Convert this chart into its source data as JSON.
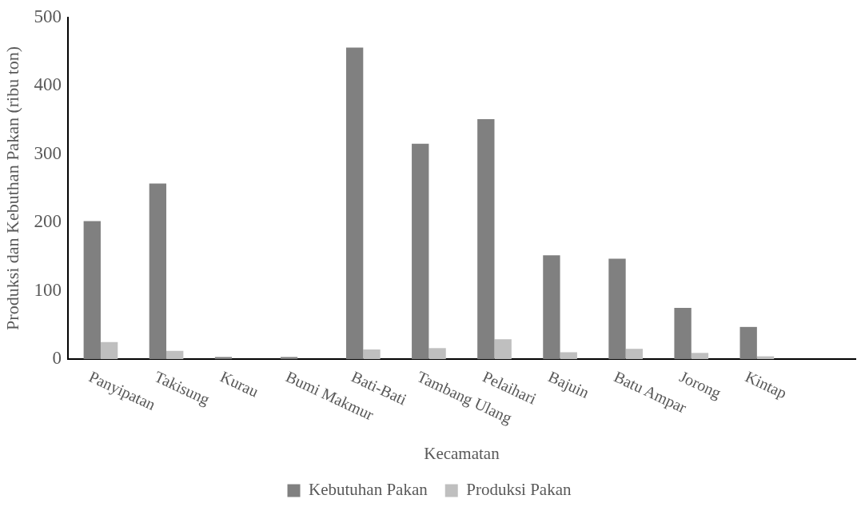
{
  "chart_data": {
    "type": "bar",
    "xlabel": "Kecamatan",
    "ylabel": "Produksi dan Kebuthan Pakan (ribu ton)",
    "categories": [
      "Panyipatan",
      "Takisung",
      "Kurau",
      "Bumi Makmur",
      "Bati-Bati",
      "Tambang Ulang",
      "Pelaihari",
      "Bajuin",
      "Batu Ampar",
      "Jorong",
      "Kintap",
      null
    ],
    "series": [
      {
        "name": "Kebutuhan Pakan",
        "color": "#808080",
        "values": [
          202,
          257,
          3,
          3,
          456,
          315,
          351,
          152,
          147,
          75,
          47,
          null
        ]
      },
      {
        "name": "Produksi Pakan",
        "color": "#bfbfbf",
        "values": [
          25,
          12,
          null,
          null,
          14,
          16,
          29,
          10,
          15,
          9,
          4,
          null
        ]
      }
    ],
    "ylim": [
      0,
      500
    ],
    "yticks": [
      0,
      100,
      200,
      300,
      400,
      500
    ],
    "grid": false,
    "legend": "bottom"
  }
}
